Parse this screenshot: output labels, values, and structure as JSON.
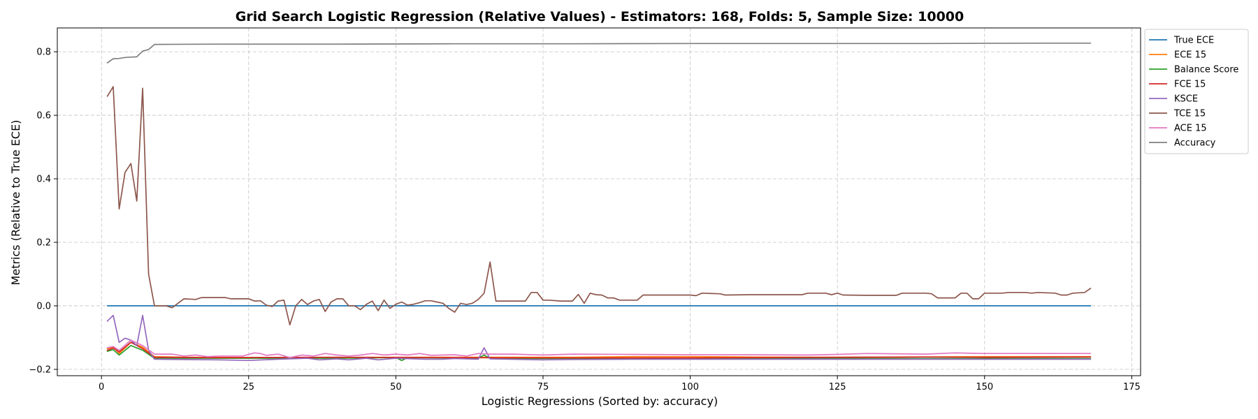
{
  "chart_data": {
    "type": "line",
    "title": "Grid Search Logistic Regression (Relative Values) - Estimators: 168, Folds: 5, Sample Size: 10000",
    "xlabel": "Logistic Regressions (Sorted by: accuracy)",
    "ylabel": "Metrics (Relative to True ECE)",
    "xlim": [
      -7.5,
      176.5
    ],
    "ylim": [
      -0.22,
      0.875
    ],
    "xticks": [
      0,
      25,
      50,
      75,
      100,
      125,
      150,
      175
    ],
    "xtick_labels": [
      "0",
      "25",
      "50",
      "75",
      "100",
      "125",
      "150",
      "175"
    ],
    "yticks": [
      -0.2,
      0.0,
      0.2,
      0.4,
      0.6,
      0.8
    ],
    "ytick_labels": [
      "−0.2",
      "0.0",
      "0.2",
      "0.4",
      "0.6",
      "0.8"
    ],
    "grid": true,
    "legend_position": "outside-top-right",
    "series": [
      {
        "name": "True ECE",
        "color": "#1f77b4",
        "points": [
          [
            1,
            0.0
          ],
          [
            168,
            0.0
          ]
        ]
      },
      {
        "name": "ECE 15",
        "color": "#ff7f0e",
        "points": [
          [
            1,
            -0.135
          ],
          [
            2,
            -0.13
          ],
          [
            3,
            -0.15
          ],
          [
            5,
            -0.115
          ],
          [
            7,
            -0.13
          ],
          [
            9,
            -0.16
          ],
          [
            15,
            -0.162
          ],
          [
            30,
            -0.163
          ],
          [
            50,
            -0.162
          ],
          [
            70,
            -0.162
          ],
          [
            80,
            -0.162
          ],
          [
            90,
            -0.16
          ],
          [
            100,
            -0.16
          ],
          [
            110,
            -0.161
          ],
          [
            125,
            -0.162
          ],
          [
            140,
            -0.161
          ],
          [
            150,
            -0.16
          ],
          [
            168,
            -0.16
          ]
        ]
      },
      {
        "name": "Balance Score",
        "color": "#2ca02c",
        "points": [
          [
            1,
            -0.143
          ],
          [
            2,
            -0.138
          ],
          [
            3,
            -0.155
          ],
          [
            5,
            -0.125
          ],
          [
            7,
            -0.14
          ],
          [
            9,
            -0.165
          ],
          [
            20,
            -0.165
          ],
          [
            40,
            -0.165
          ],
          [
            50,
            -0.163
          ],
          [
            51,
            -0.172
          ],
          [
            52,
            -0.163
          ],
          [
            64,
            -0.165
          ],
          [
            65,
            -0.155
          ],
          [
            66,
            -0.166
          ],
          [
            100,
            -0.166
          ],
          [
            125,
            -0.166
          ],
          [
            168,
            -0.166
          ]
        ]
      },
      {
        "name": "FCE 15",
        "color": "#d62728",
        "points": [
          [
            1,
            -0.14
          ],
          [
            2,
            -0.133
          ],
          [
            3,
            -0.145
          ],
          [
            5,
            -0.115
          ],
          [
            7,
            -0.135
          ],
          [
            9,
            -0.162
          ],
          [
            20,
            -0.163
          ],
          [
            40,
            -0.162
          ],
          [
            60,
            -0.163
          ],
          [
            75,
            -0.164
          ],
          [
            100,
            -0.164
          ],
          [
            125,
            -0.162
          ],
          [
            140,
            -0.161
          ],
          [
            150,
            -0.162
          ],
          [
            168,
            -0.161
          ]
        ]
      },
      {
        "name": "KSCE",
        "color": "#9467bd",
        "points": [
          [
            1,
            -0.048
          ],
          [
            2,
            -0.03
          ],
          [
            3,
            -0.115
          ],
          [
            4,
            -0.102
          ],
          [
            5,
            -0.108
          ],
          [
            6,
            -0.125
          ],
          [
            7,
            -0.03
          ],
          [
            8,
            -0.14
          ],
          [
            9,
            -0.168
          ],
          [
            20,
            -0.17
          ],
          [
            25,
            -0.172
          ],
          [
            30,
            -0.168
          ],
          [
            35,
            -0.165
          ],
          [
            37,
            -0.17
          ],
          [
            40,
            -0.167
          ],
          [
            42,
            -0.17
          ],
          [
            45,
            -0.165
          ],
          [
            47,
            -0.17
          ],
          [
            50,
            -0.165
          ],
          [
            55,
            -0.168
          ],
          [
            58,
            -0.168
          ],
          [
            60,
            -0.166
          ],
          [
            64,
            -0.168
          ],
          [
            65,
            -0.132
          ],
          [
            66,
            -0.167
          ],
          [
            75,
            -0.17
          ],
          [
            80,
            -0.169
          ],
          [
            90,
            -0.168
          ],
          [
            100,
            -0.168
          ],
          [
            125,
            -0.168
          ],
          [
            150,
            -0.168
          ],
          [
            168,
            -0.168
          ]
        ]
      },
      {
        "name": "TCE 15",
        "color": "#8c564b",
        "points": [
          [
            1,
            0.66
          ],
          [
            2,
            0.69
          ],
          [
            3,
            0.305
          ],
          [
            4,
            0.42
          ],
          [
            5,
            0.448
          ],
          [
            6,
            0.33
          ],
          [
            7,
            0.685
          ],
          [
            8,
            0.1
          ],
          [
            9,
            0.0
          ],
          [
            11,
            0.0
          ],
          [
            12,
            -0.006
          ],
          [
            14,
            0.022
          ],
          [
            16,
            0.02
          ],
          [
            17,
            0.026
          ],
          [
            21,
            0.026
          ],
          [
            22,
            0.022
          ],
          [
            25,
            0.022
          ],
          [
            26,
            0.015
          ],
          [
            27,
            0.016
          ],
          [
            28,
            0.002
          ],
          [
            29,
            -0.002
          ],
          [
            30,
            0.015
          ],
          [
            31,
            0.018
          ],
          [
            32,
            -0.06
          ],
          [
            33,
            0.0
          ],
          [
            34,
            0.02
          ],
          [
            35,
            0.004
          ],
          [
            36,
            0.015
          ],
          [
            37,
            0.02
          ],
          [
            38,
            -0.018
          ],
          [
            39,
            0.012
          ],
          [
            40,
            0.022
          ],
          [
            41,
            0.022
          ],
          [
            42,
            0.0
          ],
          [
            43,
            0.0
          ],
          [
            44,
            -0.012
          ],
          [
            45,
            0.005
          ],
          [
            46,
            0.015
          ],
          [
            47,
            -0.015
          ],
          [
            48,
            0.018
          ],
          [
            49,
            -0.008
          ],
          [
            50,
            0.005
          ],
          [
            51,
            0.012
          ],
          [
            52,
            0.002
          ],
          [
            53,
            0.005
          ],
          [
            54,
            0.01
          ],
          [
            55,
            0.016
          ],
          [
            56,
            0.016
          ],
          [
            57,
            0.012
          ],
          [
            58,
            0.008
          ],
          [
            59,
            -0.008
          ],
          [
            60,
            -0.02
          ],
          [
            61,
            0.008
          ],
          [
            62,
            0.004
          ],
          [
            63,
            0.008
          ],
          [
            64,
            0.02
          ],
          [
            65,
            0.04
          ],
          [
            66,
            0.138
          ],
          [
            67,
            0.015
          ],
          [
            68,
            0.015
          ],
          [
            71,
            0.015
          ],
          [
            72,
            0.015
          ],
          [
            73,
            0.042
          ],
          [
            74,
            0.042
          ],
          [
            75,
            0.018
          ],
          [
            76,
            0.018
          ],
          [
            78,
            0.015
          ],
          [
            80,
            0.015
          ],
          [
            81,
            0.036
          ],
          [
            82,
            0.008
          ],
          [
            83,
            0.04
          ],
          [
            84,
            0.035
          ],
          [
            85,
            0.034
          ],
          [
            86,
            0.025
          ],
          [
            87,
            0.025
          ],
          [
            88,
            0.018
          ],
          [
            90,
            0.018
          ],
          [
            91,
            0.018
          ],
          [
            92,
            0.034
          ],
          [
            95,
            0.034
          ],
          [
            99,
            0.034
          ],
          [
            100,
            0.034
          ],
          [
            101,
            0.032
          ],
          [
            102,
            0.04
          ],
          [
            105,
            0.038
          ],
          [
            106,
            0.034
          ],
          [
            110,
            0.035
          ],
          [
            115,
            0.035
          ],
          [
            119,
            0.035
          ],
          [
            120,
            0.04
          ],
          [
            123,
            0.04
          ],
          [
            124,
            0.035
          ],
          [
            125,
            0.04
          ],
          [
            126,
            0.034
          ],
          [
            130,
            0.033
          ],
          [
            135,
            0.033
          ],
          [
            136,
            0.04
          ],
          [
            140,
            0.04
          ],
          [
            141,
            0.038
          ],
          [
            142,
            0.025
          ],
          [
            145,
            0.025
          ],
          [
            146,
            0.04
          ],
          [
            147,
            0.04
          ],
          [
            148,
            0.022
          ],
          [
            149,
            0.022
          ],
          [
            150,
            0.04
          ],
          [
            153,
            0.04
          ],
          [
            154,
            0.042
          ],
          [
            157,
            0.042
          ],
          [
            158,
            0.04
          ],
          [
            159,
            0.042
          ],
          [
            162,
            0.04
          ],
          [
            163,
            0.034
          ],
          [
            164,
            0.034
          ],
          [
            165,
            0.04
          ],
          [
            167,
            0.042
          ],
          [
            168,
            0.055
          ]
        ]
      },
      {
        "name": "ACE 15",
        "color": "#e377c2",
        "points": [
          [
            1,
            -0.132
          ],
          [
            2,
            -0.128
          ],
          [
            3,
            -0.14
          ],
          [
            5,
            -0.108
          ],
          [
            7,
            -0.125
          ],
          [
            9,
            -0.152
          ],
          [
            12,
            -0.152
          ],
          [
            14,
            -0.158
          ],
          [
            16,
            -0.155
          ],
          [
            18,
            -0.16
          ],
          [
            20,
            -0.158
          ],
          [
            24,
            -0.158
          ],
          [
            26,
            -0.148
          ],
          [
            27,
            -0.15
          ],
          [
            28,
            -0.156
          ],
          [
            30,
            -0.152
          ],
          [
            32,
            -0.163
          ],
          [
            34,
            -0.155
          ],
          [
            36,
            -0.158
          ],
          [
            38,
            -0.15
          ],
          [
            40,
            -0.155
          ],
          [
            42,
            -0.158
          ],
          [
            44,
            -0.155
          ],
          [
            46,
            -0.15
          ],
          [
            48,
            -0.155
          ],
          [
            50,
            -0.152
          ],
          [
            52,
            -0.155
          ],
          [
            54,
            -0.15
          ],
          [
            56,
            -0.156
          ],
          [
            58,
            -0.155
          ],
          [
            60,
            -0.154
          ],
          [
            62,
            -0.158
          ],
          [
            64,
            -0.15
          ],
          [
            66,
            -0.152
          ],
          [
            70,
            -0.152
          ],
          [
            75,
            -0.155
          ],
          [
            80,
            -0.152
          ],
          [
            90,
            -0.153
          ],
          [
            100,
            -0.154
          ],
          [
            110,
            -0.154
          ],
          [
            120,
            -0.155
          ],
          [
            125,
            -0.153
          ],
          [
            130,
            -0.15
          ],
          [
            140,
            -0.152
          ],
          [
            145,
            -0.148
          ],
          [
            150,
            -0.15
          ],
          [
            160,
            -0.15
          ],
          [
            168,
            -0.15
          ]
        ]
      },
      {
        "name": "Accuracy",
        "color": "#7f7f7f",
        "points": [
          [
            1,
            0.765
          ],
          [
            2,
            0.778
          ],
          [
            3,
            0.779
          ],
          [
            4,
            0.782
          ],
          [
            5,
            0.783
          ],
          [
            6,
            0.784
          ],
          [
            7,
            0.802
          ],
          [
            8,
            0.807
          ],
          [
            9,
            0.823
          ],
          [
            20,
            0.824
          ],
          [
            40,
            0.824
          ],
          [
            60,
            0.825
          ],
          [
            80,
            0.825
          ],
          [
            100,
            0.826
          ],
          [
            120,
            0.826
          ],
          [
            140,
            0.826
          ],
          [
            160,
            0.827
          ],
          [
            168,
            0.827
          ]
        ]
      }
    ]
  }
}
